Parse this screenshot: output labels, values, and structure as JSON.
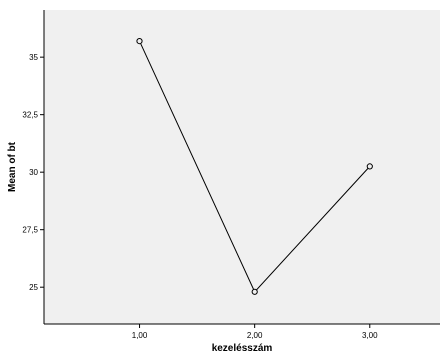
{
  "chart_data": {
    "type": "line",
    "title": "",
    "xlabel": "kezelésszám",
    "ylabel": "Mean of bt",
    "x": [
      "1,00",
      "2,00",
      "3,00"
    ],
    "xlim": [
      0.17,
      3.61
    ],
    "y_ticks": [
      25,
      27.5,
      30,
      32.5,
      35
    ],
    "y_tick_labels": [
      "25",
      "27,5",
      "30",
      "32,5",
      "35"
    ],
    "ylim": [
      23.4,
      37.05
    ],
    "series": [
      {
        "values": [
          35.7,
          24.8,
          30.25
        ]
      }
    ],
    "grid": false,
    "legend": "none",
    "colors": {
      "plot_background": "#f0f0f0",
      "line": "#000000",
      "marker_fill": "#f0f0f0",
      "axis": "#000000"
    }
  }
}
